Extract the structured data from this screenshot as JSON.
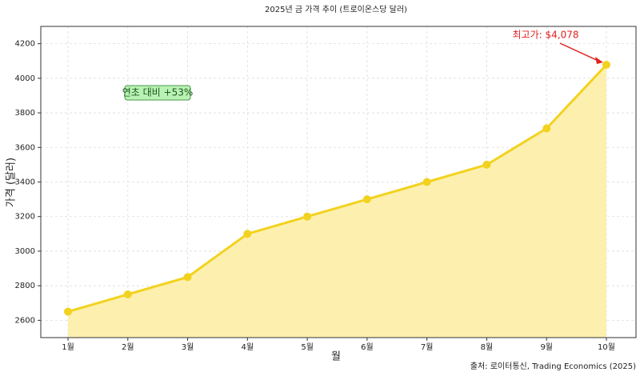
{
  "chart_data": {
    "type": "line",
    "title": "2025년 금 가격 추이 (트로이온스당 달러)",
    "x_label": "월",
    "y_label": "가격 (달러)",
    "categories": [
      "1월",
      "2월",
      "3월",
      "4월",
      "5월",
      "6월",
      "7월",
      "8월",
      "9월",
      "10월"
    ],
    "series": [
      {
        "name": "금 가격",
        "color": "#f2d21e",
        "fill": "#fdeea6",
        "values": [
          2650,
          2750,
          2850,
          3100,
          3200,
          3300,
          3400,
          3500,
          3710,
          4078
        ]
      }
    ],
    "ylim": [
      2500,
      4300
    ],
    "yticks": [
      2600,
      2800,
      3000,
      3200,
      3400,
      3600,
      3800,
      4000,
      4200
    ],
    "grid": true,
    "peak_label": "최고가: $4,078",
    "growth_label": "연초 대비 +53%",
    "source": "출처: 로이터통신, Trading Economics (2025)"
  }
}
